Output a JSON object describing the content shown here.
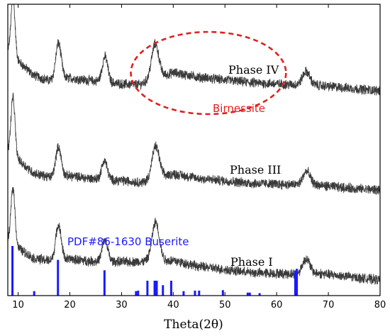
{
  "chart_data": {
    "type": "line",
    "title": "",
    "xlabel": "Theta(2θ)",
    "ylabel": "",
    "xlim": [
      8,
      80
    ],
    "xticks": [
      10,
      20,
      30,
      40,
      50,
      60,
      70,
      80
    ],
    "xtick_labels": [
      "10",
      "20",
      "30",
      "40",
      "50",
      "60",
      "70",
      "80"
    ],
    "yaxis_ticks": "none",
    "grid": false,
    "colors": {
      "series": "#3a3a3a",
      "reference": "#1a1aff",
      "highlight": "#e02020",
      "axes": "#000000"
    },
    "series": [
      {
        "name": "Phase IV",
        "peaks": [
          {
            "x": 9.0,
            "y": 4.3
          },
          {
            "x": 17.8,
            "y": 2.7
          },
          {
            "x": 26.8,
            "y": 1.9
          },
          {
            "x": 36.5,
            "y": 2.6
          },
          {
            "x": 65.7,
            "y": 1.0
          }
        ],
        "profile": [
          {
            "x": 8.0,
            "y": 2.9
          },
          {
            "x": 13.0,
            "y": 1.15
          },
          {
            "x": 16.0,
            "y": 0.75
          },
          {
            "x": 20.0,
            "y": 0.95
          },
          {
            "x": 24.0,
            "y": 0.75
          },
          {
            "x": 30.0,
            "y": 0.5
          },
          {
            "x": 33.5,
            "y": 0.45
          },
          {
            "x": 40.0,
            "y": 1.35
          },
          {
            "x": 45.0,
            "y": 1.0
          },
          {
            "x": 55.0,
            "y": 0.6
          },
          {
            "x": 63.0,
            "y": 0.45
          },
          {
            "x": 68.0,
            "y": 0.4
          },
          {
            "x": 75.0,
            "y": 0.15
          },
          {
            "x": 80.0,
            "y": 0.0
          }
        ]
      },
      {
        "name": "Phase III",
        "peaks": [
          {
            "x": 9.0,
            "y": 4.3
          },
          {
            "x": 17.8,
            "y": 2.2
          },
          {
            "x": 26.7,
            "y": 1.4
          },
          {
            "x": 36.6,
            "y": 2.4
          },
          {
            "x": 65.8,
            "y": 1.0
          }
        ],
        "profile": [
          {
            "x": 8.0,
            "y": 2.9
          },
          {
            "x": 13.0,
            "y": 1.25
          },
          {
            "x": 16.0,
            "y": 0.95
          },
          {
            "x": 20.0,
            "y": 1.05
          },
          {
            "x": 24.0,
            "y": 0.85
          },
          {
            "x": 30.0,
            "y": 0.7
          },
          {
            "x": 34.0,
            "y": 0.55
          },
          {
            "x": 40.0,
            "y": 1.2
          },
          {
            "x": 45.0,
            "y": 0.85
          },
          {
            "x": 55.0,
            "y": 0.5
          },
          {
            "x": 63.0,
            "y": 0.4
          },
          {
            "x": 68.0,
            "y": 0.35
          },
          {
            "x": 75.0,
            "y": 0.1
          },
          {
            "x": 80.0,
            "y": 0.0
          }
        ]
      },
      {
        "name": "Phase I",
        "peaks": [
          {
            "x": 9.0,
            "y": 4.2
          },
          {
            "x": 17.8,
            "y": 2.6
          },
          {
            "x": 26.8,
            "y": 1.6
          },
          {
            "x": 36.6,
            "y": 2.9
          },
          {
            "x": 65.7,
            "y": 1.1
          }
        ],
        "profile": [
          {
            "x": 8.0,
            "y": 2.9
          },
          {
            "x": 13.0,
            "y": 1.6
          },
          {
            "x": 16.0,
            "y": 1.45
          },
          {
            "x": 20.0,
            "y": 1.55
          },
          {
            "x": 24.0,
            "y": 1.4
          },
          {
            "x": 30.0,
            "y": 1.35
          },
          {
            "x": 34.0,
            "y": 1.35
          },
          {
            "x": 40.0,
            "y": 1.45
          },
          {
            "x": 45.0,
            "y": 1.0
          },
          {
            "x": 55.0,
            "y": 0.55
          },
          {
            "x": 63.0,
            "y": 0.45
          },
          {
            "x": 68.0,
            "y": 0.5
          },
          {
            "x": 75.0,
            "y": 0.2
          },
          {
            "x": 80.0,
            "y": 0.0
          }
        ]
      }
    ],
    "reference_pattern": {
      "name": "PDF#86-1630 Buserite",
      "sticks": [
        {
          "x": 8.9,
          "y": 100
        },
        {
          "x": 13.1,
          "y": 9
        },
        {
          "x": 17.7,
          "y": 72
        },
        {
          "x": 26.7,
          "y": 51
        },
        {
          "x": 32.8,
          "y": 9
        },
        {
          "x": 33.2,
          "y": 10
        },
        {
          "x": 35.0,
          "y": 30
        },
        {
          "x": 36.4,
          "y": 30
        },
        {
          "x": 36.8,
          "y": 30
        },
        {
          "x": 38.0,
          "y": 21
        },
        {
          "x": 39.6,
          "y": 30
        },
        {
          "x": 42.0,
          "y": 9
        },
        {
          "x": 44.2,
          "y": 10
        },
        {
          "x": 45.0,
          "y": 10
        },
        {
          "x": 49.6,
          "y": 11
        },
        {
          "x": 54.4,
          "y": 6
        },
        {
          "x": 54.8,
          "y": 6
        },
        {
          "x": 56.7,
          "y": 5
        },
        {
          "x": 63.6,
          "y": 50
        },
        {
          "x": 63.9,
          "y": 54
        }
      ]
    },
    "annotations": [
      {
        "text": "Birnessite",
        "shape": "dashed-ellipse",
        "center": {
          "x": 47,
          "y_series": "Phase IV"
        },
        "x_span": [
          31.8,
          61.8
        ]
      }
    ]
  }
}
